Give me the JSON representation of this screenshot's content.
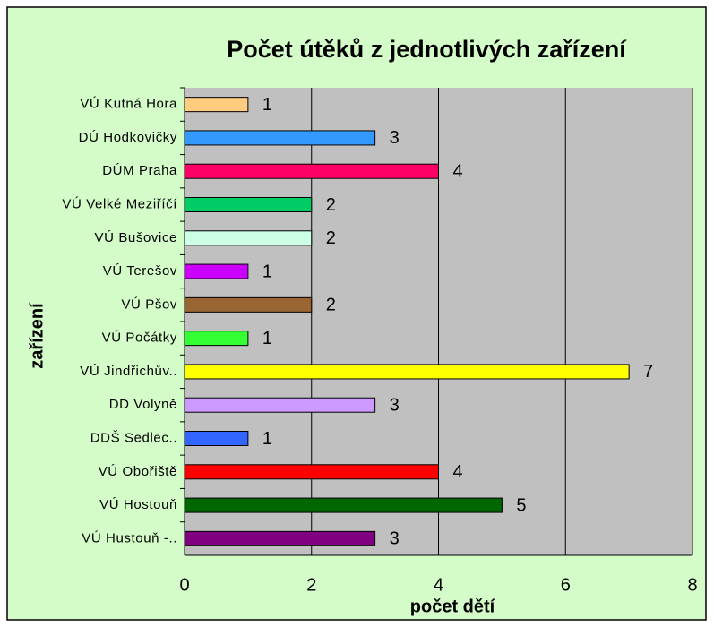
{
  "chart_data": {
    "type": "bar",
    "orientation": "horizontal",
    "title": "Počet útěků z jednotlivých zařízení",
    "xlabel": "počet dětí",
    "ylabel": "zařízení",
    "categories": [
      "VÚ Kutná Hora",
      "DÚ Hodkovičky",
      "DÚM Praha",
      "VÚ Velké Meziříčí",
      "VÚ Bušovice",
      "VÚ Terešov",
      "VÚ Pšov",
      "VÚ Počátky",
      "VÚ Jindřichův..",
      "DD Volyně",
      "DDŠ Sedlec..",
      "VÚ Obořiště",
      "VÚ Hostouň",
      "VÚ Hustouň -.."
    ],
    "values": [
      1,
      3,
      4,
      2,
      2,
      1,
      2,
      1,
      7,
      3,
      1,
      4,
      5,
      3
    ],
    "colors": [
      "#ffcc80",
      "#3399ff",
      "#ff0066",
      "#00cc66",
      "#ccffe6",
      "#cc00ff",
      "#996633",
      "#33ff33",
      "#ffff00",
      "#cc99ff",
      "#3366ff",
      "#ff0000",
      "#006600",
      "#800080"
    ],
    "xlim": [
      0,
      8
    ],
    "xticks": [
      0,
      2,
      4,
      6,
      8
    ],
    "grid": true
  }
}
